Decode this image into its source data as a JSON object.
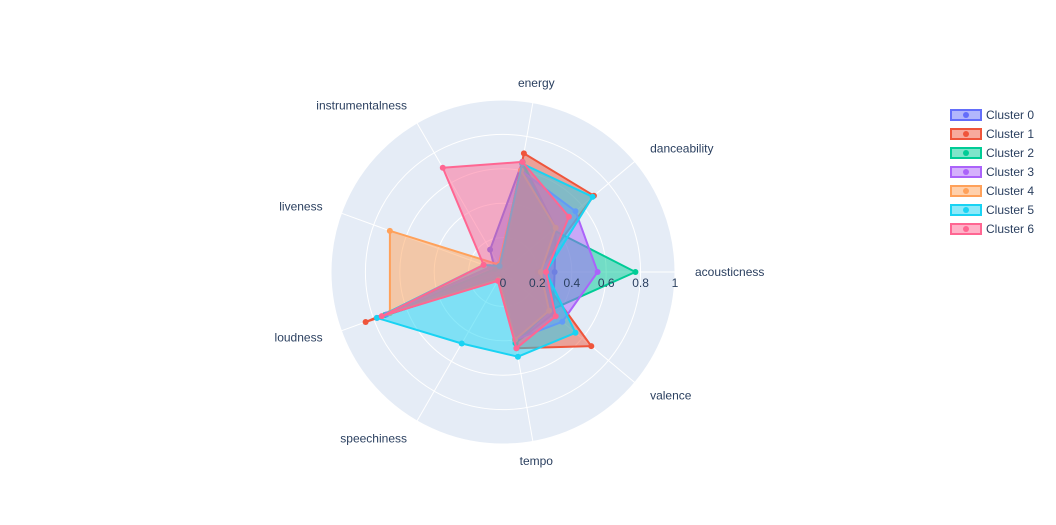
{
  "chart_data": {
    "type": "radar",
    "title": "",
    "axes": [
      "acousticness",
      "danceability",
      "energy",
      "instrumentalness",
      "liveness",
      "loudness",
      "speechiness",
      "tempo",
      "valence"
    ],
    "radial_range": [
      0,
      1
    ],
    "radial_ticks": [
      "0",
      "0.2",
      "0.4",
      "0.6",
      "0.8",
      "1"
    ],
    "legend_position": "top-right",
    "series": [
      {
        "name": "Cluster 0",
        "color": "#636efa",
        "values": [
          0.3,
          0.4,
          0.65,
          0.15,
          0.05,
          0.78,
          0.05,
          0.42,
          0.38
        ]
      },
      {
        "name": "Cluster 1",
        "color": "#ef553b",
        "values": [
          0.2,
          0.69,
          0.7,
          0.04,
          0.08,
          0.85,
          0.04,
          0.45,
          0.67
        ]
      },
      {
        "name": "Cluster 2",
        "color": "#00cc96",
        "values": [
          0.77,
          0.38,
          0.65,
          0.03,
          0.05,
          0.73,
          0.05,
          0.42,
          0.35
        ]
      },
      {
        "name": "Cluster 3",
        "color": "#ab63fa",
        "values": [
          0.55,
          0.55,
          0.6,
          0.05,
          0.08,
          0.72,
          0.05,
          0.4,
          0.45
        ]
      },
      {
        "name": "Cluster 4",
        "color": "#ffa15a",
        "values": [
          0.22,
          0.4,
          0.6,
          0.05,
          0.7,
          0.7,
          0.05,
          0.4,
          0.35
        ]
      },
      {
        "name": "Cluster 5",
        "color": "#19d3f3",
        "values": [
          0.25,
          0.68,
          0.64,
          0.04,
          0.12,
          0.78,
          0.48,
          0.5,
          0.55
        ]
      },
      {
        "name": "Cluster 6",
        "color": "#ff6692",
        "values": [
          0.25,
          0.5,
          0.65,
          0.7,
          0.12,
          0.75,
          0.06,
          0.45,
          0.4
        ]
      }
    ]
  }
}
